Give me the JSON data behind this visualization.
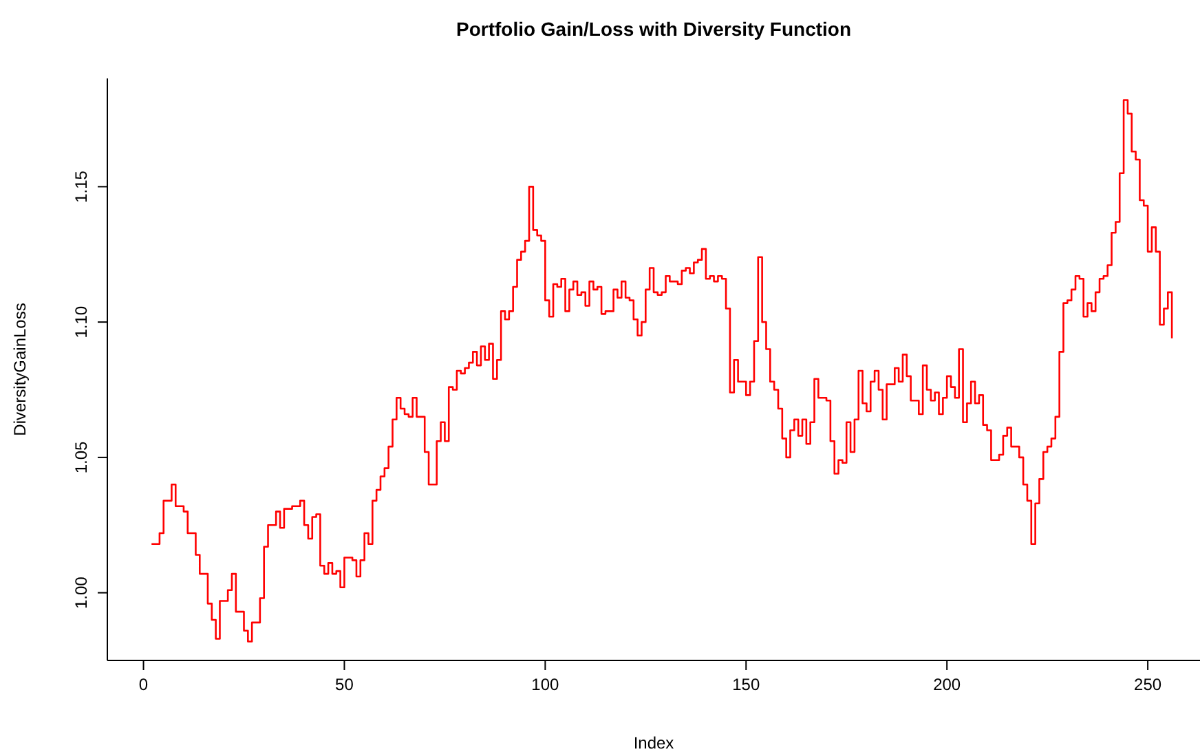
{
  "chart_data": {
    "type": "step",
    "title": "Portfolio Gain/Loss with Diversity Function",
    "xlabel": "Index",
    "ylabel": "DiversityGainLoss",
    "x": [
      2,
      4,
      5,
      7,
      8,
      10,
      11,
      13,
      14,
      16,
      17,
      18,
      19,
      21,
      22,
      23,
      25,
      26,
      27,
      29,
      30,
      31,
      33,
      34,
      35,
      37,
      39,
      40,
      41,
      42,
      43,
      44,
      45,
      46,
      47,
      48,
      49,
      50,
      52,
      53,
      54,
      55,
      56,
      57,
      58,
      59,
      60,
      61,
      62,
      63,
      64,
      65,
      66,
      67,
      68,
      69,
      70,
      71,
      73,
      74,
      75,
      76,
      77,
      78,
      79,
      80,
      81,
      82,
      83,
      84,
      85,
      86,
      87,
      88,
      89,
      90,
      91,
      92,
      93,
      94,
      95,
      96,
      97,
      98,
      99,
      100,
      101,
      102,
      103,
      104,
      105,
      106,
      107,
      108,
      109,
      110,
      111,
      112,
      113,
      114,
      115,
      116,
      117,
      118,
      119,
      120,
      121,
      122,
      123,
      124,
      125,
      126,
      127,
      128,
      129,
      130,
      131,
      132,
      133,
      134,
      135,
      136,
      137,
      138,
      139,
      140,
      141,
      142,
      143,
      144,
      145,
      146,
      147,
      148,
      149,
      150,
      151,
      152,
      153,
      154,
      155,
      156,
      157,
      158,
      159,
      160,
      161,
      162,
      163,
      164,
      165,
      166,
      167,
      168,
      170,
      171,
      172,
      173,
      174,
      175,
      176,
      177,
      178,
      179,
      180,
      181,
      182,
      183,
      184,
      185,
      187,
      188,
      189,
      190,
      191,
      192,
      193,
      194,
      195,
      196,
      197,
      198,
      199,
      200,
      201,
      202,
      203,
      204,
      205,
      206,
      207,
      208,
      209,
      210,
      211,
      212,
      213,
      214,
      215,
      216,
      217,
      218,
      219,
      220,
      221,
      222,
      223,
      224,
      225,
      226,
      227,
      228,
      229,
      230,
      231,
      232,
      233,
      234,
      235,
      236,
      237,
      238,
      239,
      240,
      241,
      242,
      243,
      244,
      245,
      246,
      247,
      248,
      249,
      250,
      251,
      252,
      253,
      254,
      255,
      256
    ],
    "series": [
      {
        "color": "#ff0000",
        "values": [
          1.018,
          1.022,
          1.034,
          1.04,
          1.032,
          1.03,
          1.022,
          1.014,
          1.007,
          0.996,
          0.99,
          0.983,
          0.997,
          1.001,
          1.007,
          0.993,
          0.986,
          0.982,
          0.989,
          0.998,
          1.017,
          1.025,
          1.03,
          1.024,
          1.031,
          1.032,
          1.034,
          1.025,
          1.02,
          1.028,
          1.029,
          1.01,
          1.007,
          1.011,
          1.007,
          1.008,
          1.002,
          1.013,
          1.012,
          1.006,
          1.012,
          1.022,
          1.018,
          1.034,
          1.038,
          1.043,
          1.046,
          1.054,
          1.064,
          1.072,
          1.068,
          1.066,
          1.065,
          1.072,
          1.065,
          1.065,
          1.052,
          1.04,
          1.056,
          1.063,
          1.056,
          1.076,
          1.075,
          1.082,
          1.081,
          1.083,
          1.085,
          1.089,
          1.084,
          1.091,
          1.086,
          1.092,
          1.079,
          1.086,
          1.104,
          1.101,
          1.104,
          1.113,
          1.123,
          1.126,
          1.13,
          1.15,
          1.134,
          1.132,
          1.13,
          1.108,
          1.102,
          1.114,
          1.113,
          1.116,
          1.104,
          1.112,
          1.115,
          1.11,
          1.111,
          1.106,
          1.115,
          1.112,
          1.113,
          1.103,
          1.104,
          1.104,
          1.112,
          1.109,
          1.115,
          1.109,
          1.108,
          1.101,
          1.095,
          1.1,
          1.112,
          1.12,
          1.111,
          1.11,
          1.111,
          1.117,
          1.115,
          1.115,
          1.114,
          1.119,
          1.12,
          1.118,
          1.122,
          1.123,
          1.127,
          1.116,
          1.117,
          1.115,
          1.117,
          1.116,
          1.105,
          1.074,
          1.086,
          1.078,
          1.078,
          1.073,
          1.078,
          1.093,
          1.124,
          1.1,
          1.09,
          1.078,
          1.075,
          1.068,
          1.057,
          1.05,
          1.06,
          1.064,
          1.058,
          1.064,
          1.055,
          1.063,
          1.079,
          1.072,
          1.071,
          1.056,
          1.044,
          1.049,
          1.048,
          1.063,
          1.052,
          1.064,
          1.082,
          1.07,
          1.067,
          1.078,
          1.082,
          1.075,
          1.064,
          1.077,
          1.083,
          1.078,
          1.088,
          1.08,
          1.071,
          1.071,
          1.066,
          1.084,
          1.075,
          1.071,
          1.074,
          1.066,
          1.072,
          1.08,
          1.076,
          1.072,
          1.09,
          1.063,
          1.07,
          1.078,
          1.07,
          1.073,
          1.062,
          1.06,
          1.049,
          1.049,
          1.051,
          1.058,
          1.061,
          1.054,
          1.054,
          1.05,
          1.04,
          1.034,
          1.018,
          1.033,
          1.042,
          1.052,
          1.054,
          1.057,
          1.065,
          1.089,
          1.107,
          1.108,
          1.112,
          1.117,
          1.116,
          1.102,
          1.107,
          1.104,
          1.111,
          1.116,
          1.117,
          1.121,
          1.133,
          1.137,
          1.155,
          1.182,
          1.177,
          1.163,
          1.16,
          1.145,
          1.143,
          1.126,
          1.135,
          1.126,
          1.099,
          1.105,
          1.111,
          1.094
        ]
      }
    ],
    "xlim": [
      -9,
      263
    ],
    "ylim": [
      0.975,
      1.19
    ],
    "xticks": [
      0,
      50,
      100,
      150,
      200,
      250
    ],
    "yticks": [
      {
        "value": 1.0,
        "label": "1.00"
      },
      {
        "value": 1.05,
        "label": "1.05"
      },
      {
        "value": 1.1,
        "label": "1.10"
      },
      {
        "value": 1.15,
        "label": "1.15"
      }
    ],
    "grid": false,
    "legend": false,
    "marker": "none",
    "line_style": "solid"
  }
}
